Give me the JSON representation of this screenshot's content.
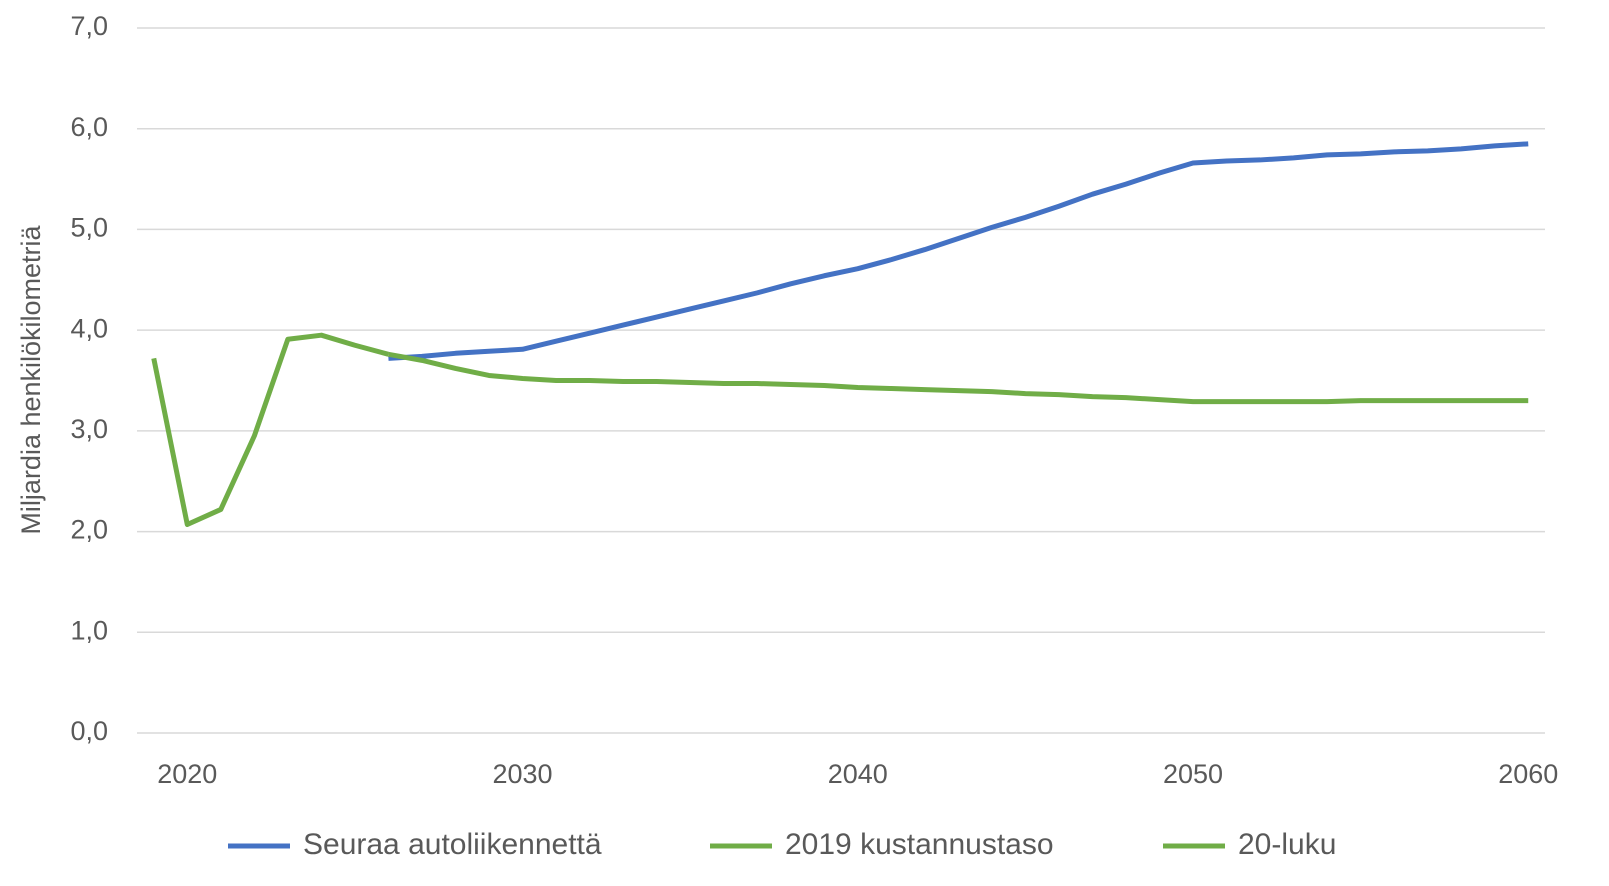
{
  "chart_data": {
    "type": "line",
    "y_label": "Miljardia henkilökilometriä",
    "xlim": [
      2018.5,
      2060.5
    ],
    "xticks": [
      2020,
      2030,
      2040,
      2050,
      2060
    ],
    "ylim": [
      0,
      7
    ],
    "yticks": [
      {
        "value": 0,
        "label": "0,0"
      },
      {
        "value": 1,
        "label": "1,0"
      },
      {
        "value": 2,
        "label": "2,0"
      },
      {
        "value": 3,
        "label": "3,0"
      },
      {
        "value": 4,
        "label": "4,0"
      },
      {
        "value": 5,
        "label": "5,0"
      },
      {
        "value": 6,
        "label": "6,0"
      },
      {
        "value": 7,
        "label": "7,0"
      }
    ],
    "grid": true,
    "legend": "bottom",
    "series": [
      {
        "name": "Seuraa autoliikennettä",
        "color": "#4472c4",
        "x": [
          2026,
          2027,
          2028,
          2029,
          2030,
          2031,
          2032,
          2033,
          2034,
          2035,
          2036,
          2037,
          2038,
          2039,
          2040,
          2041,
          2042,
          2043,
          2044,
          2045,
          2046,
          2047,
          2048,
          2049,
          2050,
          2051,
          2052,
          2053,
          2054,
          2055,
          2056,
          2057,
          2058,
          2059,
          2060
        ],
        "values": [
          3.72,
          3.74,
          3.77,
          3.79,
          3.81,
          3.89,
          3.97,
          4.05,
          4.13,
          4.21,
          4.29,
          4.37,
          4.46,
          4.54,
          4.61,
          4.7,
          4.8,
          4.91,
          5.02,
          5.12,
          5.23,
          5.35,
          5.45,
          5.56,
          5.66,
          5.68,
          5.69,
          5.71,
          5.74,
          5.75,
          5.77,
          5.78,
          5.8,
          5.83,
          5.85
        ]
      },
      {
        "name": "2019 kustannustaso",
        "color": "#70ad47",
        "x": [
          2026,
          2027,
          2028,
          2029,
          2030,
          2031,
          2032,
          2033,
          2034,
          2035,
          2036,
          2037,
          2038,
          2039,
          2040,
          2041,
          2042,
          2043,
          2044,
          2045,
          2046,
          2047,
          2048,
          2049,
          2050,
          2051,
          2052,
          2053,
          2054,
          2055,
          2056,
          2057,
          2058,
          2059,
          2060
        ],
        "values": [
          3.76,
          3.7,
          3.62,
          3.55,
          3.52,
          3.5,
          3.5,
          3.49,
          3.49,
          3.48,
          3.47,
          3.47,
          3.46,
          3.45,
          3.43,
          3.42,
          3.41,
          3.4,
          3.39,
          3.37,
          3.36,
          3.34,
          3.33,
          3.31,
          3.29,
          3.29,
          3.29,
          3.29,
          3.29,
          3.3,
          3.3,
          3.3,
          3.3,
          3.3,
          3.3
        ]
      },
      {
        "name": "20-luku",
        "color": "#70ad47",
        "x": [
          2019,
          2020,
          2021,
          2022,
          2023,
          2024,
          2025,
          2026
        ],
        "values": [
          3.72,
          2.07,
          2.22,
          2.95,
          3.91,
          3.95,
          3.85,
          3.76
        ]
      }
    ]
  }
}
